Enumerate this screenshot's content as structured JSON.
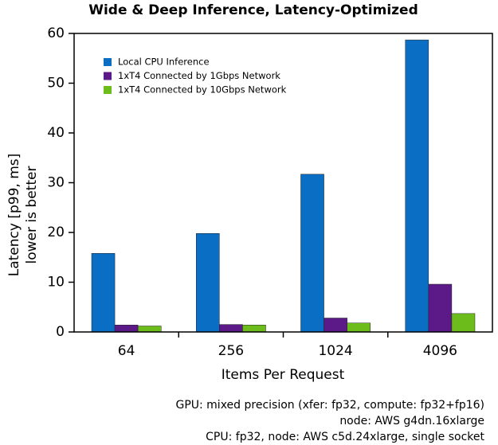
{
  "chart_data": {
    "type": "bar",
    "title": "Wide & Deep Inference, Latency-Optimized",
    "y_label": [
      "Latency [p99, ms]",
      "lower is better"
    ],
    "x_label": "Items Per Request",
    "categories": [
      "64",
      "256",
      "1024",
      "4096"
    ],
    "series": [
      {
        "name": "Local CPU Inference",
        "color": "#0b6ec5",
        "values": [
          15.8,
          19.8,
          31.7,
          58.7
        ]
      },
      {
        "name": "1xT4 Connected by 1Gbps Network",
        "color": "#5b1a88",
        "values": [
          1.4,
          1.5,
          2.8,
          9.6
        ]
      },
      {
        "name": "1xT4 Connected by 10Gbps Network",
        "color": "#6cbd1b",
        "values": [
          1.2,
          1.4,
          1.8,
          3.7
        ]
      }
    ],
    "ylim": [
      0,
      60
    ],
    "yticks": [
      0,
      10,
      20,
      30,
      40,
      50,
      60
    ],
    "legend": "upper left",
    "notes": [
      "GPU: mixed precision (xfer: fp32, compute: fp32+fp16)",
      "node: AWS g4dn.16xlarge",
      "CPU: fp32, node: AWS c5d.24xlarge, single socket"
    ]
  }
}
